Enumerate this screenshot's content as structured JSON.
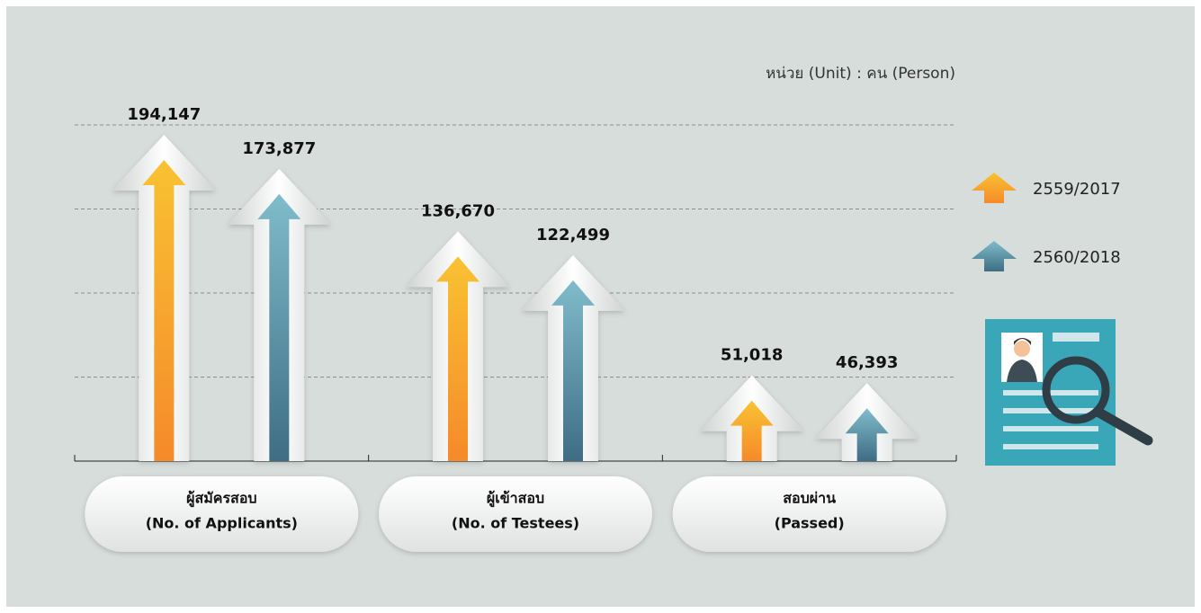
{
  "chart_data": {
    "type": "bar",
    "unit_note": "หน่วย (Unit) : คน (Person)",
    "categories": [
      [
        "ผู้สมัครสอบ",
        "(No. of Applicants)"
      ],
      [
        "ผู้เข้าสอบ",
        "(No. of Testees)"
      ],
      [
        "สอบผ่าน",
        "(Passed)"
      ]
    ],
    "series": [
      {
        "name": "2559/2017",
        "color": "#f58a2a",
        "values": [
          194147,
          136670,
          51018
        ],
        "value_labels": [
          "194,147",
          "136,670",
          "51,018"
        ]
      },
      {
        "name": "2560/2018",
        "color": "#4a9fb5",
        "values": [
          173877,
          122499,
          46393
        ],
        "value_labels": [
          "173,877",
          "122,499",
          "46,393"
        ]
      }
    ],
    "ylim": [
      0,
      200000
    ],
    "yticks": [
      50000,
      100000,
      150000,
      200000
    ],
    "grid": true
  }
}
